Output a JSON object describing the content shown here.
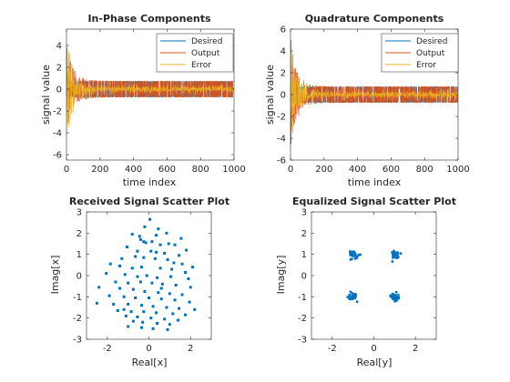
{
  "colors": {
    "desired": "#0072BD",
    "output": "#D95319",
    "error": "#EDB120",
    "scatter": "#0072BD",
    "axis": "#262626"
  },
  "chart_data": [
    {
      "type": "line",
      "title": "In-Phase Components",
      "xlabel": "time index",
      "ylabel": "signal value",
      "xlim": [
        0,
        1000
      ],
      "ylim": [
        -6.5,
        5.5
      ],
      "xticks": [
        0,
        200,
        400,
        600,
        800,
        1000
      ],
      "yticks": [
        -6,
        -4,
        -2,
        0,
        2,
        4
      ],
      "legend": "top-right",
      "grid": false,
      "series": [
        {
          "name": "Desired",
          "values_desc": "±0.71 QPSK symbols",
          "amplitude": 0.71
        },
        {
          "name": "Output",
          "transient_peak": 4.8,
          "steady_amplitude": 0.75,
          "settle_index": 80
        },
        {
          "name": "Error",
          "transient_peak": 5.5,
          "steady_amplitude": 0.35,
          "settle_index": 80
        }
      ]
    },
    {
      "type": "line",
      "title": "Quadrature Components",
      "xlabel": "time index",
      "ylabel": "signal value",
      "xlim": [
        0,
        1000
      ],
      "ylim": [
        -6,
        6
      ],
      "xticks": [
        0,
        200,
        400,
        600,
        800,
        1000
      ],
      "yticks": [
        -6,
        -4,
        -2,
        0,
        2,
        4,
        6
      ],
      "legend": "top-right",
      "grid": false,
      "series": [
        {
          "name": "Desired",
          "amplitude": 0.71
        },
        {
          "name": "Output",
          "transient_peak": 5.5,
          "steady_amplitude": 0.75,
          "settle_index": 80
        },
        {
          "name": "Error",
          "transient_peak": 5.0,
          "steady_amplitude": 0.35,
          "settle_index": 80
        }
      ]
    },
    {
      "type": "scatter",
      "title": "Received Signal Scatter Plot",
      "xlabel": "Real[x]",
      "ylabel": "Imag[x]",
      "xlim": [
        -3,
        3
      ],
      "ylim": [
        -3,
        3
      ],
      "xticks": [
        -2,
        0,
        2
      ],
      "yticks": [
        -3,
        -2,
        -1,
        0,
        1,
        2,
        3
      ],
      "x": [
        0.05,
        -0.2,
        0.45,
        -0.8,
        -0.45,
        0.35,
        0.85,
        1.55,
        -0.25,
        0.15,
        -0.15,
        0.55,
        0.95,
        1.25,
        1.8,
        -1.05,
        -0.55,
        0.1,
        0.75,
        1.45,
        -0.65,
        -0.25,
        0.3,
        0.9,
        1.6,
        2.1,
        -1.85,
        -1.4,
        -0.8,
        -0.35,
        0.55,
        1.1,
        1.75,
        -2.05,
        -1.15,
        -0.55,
        -0.1,
        0.4,
        1.05,
        1.9,
        -1.6,
        -1.0,
        -0.4,
        0.15,
        0.65,
        1.3,
        2.0,
        -2.4,
        -1.4,
        -0.75,
        -0.2,
        0.45,
        1.0,
        1.6,
        -1.9,
        -1.2,
        -0.65,
        0.0,
        0.6,
        1.25,
        1.95,
        -2.5,
        -1.7,
        -1.0,
        -0.35,
        0.2,
        0.85,
        1.45,
        2.2,
        -1.5,
        -0.85,
        -0.25,
        0.35,
        1.15,
        1.75,
        -1.1,
        -0.55,
        0.1,
        0.75,
        1.4,
        -0.75,
        -0.3,
        0.4,
        1.0,
        -1.0,
        -0.35,
        0.2,
        0.9,
        -0.4,
        0.35,
        0.6,
        -1.3,
        -1.2,
        1.2
      ],
      "y": [
        2.65,
        2.3,
        2.2,
        1.95,
        1.85,
        1.9,
        2.0,
        1.75,
        1.6,
        1.6,
        1.55,
        1.45,
        1.5,
        1.45,
        1.2,
        1.35,
        1.15,
        1.15,
        1.05,
        0.95,
        0.9,
        0.85,
        0.8,
        0.75,
        0.55,
        0.4,
        0.55,
        0.45,
        0.35,
        0.4,
        0.35,
        0.3,
        0.15,
        0.1,
        0.05,
        -0.05,
        0.0,
        -0.1,
        -0.05,
        -0.15,
        -0.3,
        -0.35,
        -0.3,
        -0.35,
        -0.4,
        -0.45,
        -0.55,
        -0.55,
        -0.6,
        -0.65,
        -0.75,
        -0.8,
        -0.85,
        -0.9,
        -0.95,
        -1.0,
        -1.05,
        -1.05,
        -1.1,
        -1.15,
        -1.25,
        -1.3,
        -1.35,
        -1.35,
        -1.4,
        -1.45,
        -1.5,
        -1.55,
        -1.6,
        -1.65,
        -1.7,
        -1.7,
        -1.75,
        -1.8,
        -1.85,
        -1.9,
        -1.95,
        -2.0,
        -2.05,
        -2.1,
        -2.15,
        -2.2,
        -2.25,
        -2.3,
        -2.4,
        -2.45,
        -2.5,
        -2.55,
        1.7,
        1.1,
        -0.6,
        0.8,
        -1.6,
        0.6
      ]
    },
    {
      "type": "scatter",
      "title": "Equalized Signal Scatter Plot",
      "xlabel": "Real[y]",
      "ylabel": "Imag[y]",
      "xlim": [
        -3,
        3
      ],
      "ylim": [
        -3,
        3
      ],
      "xticks": [
        -2,
        0,
        2
      ],
      "yticks": [
        -3,
        -2,
        -1,
        0,
        1,
        2,
        3
      ],
      "cluster_centers": [
        [
          -1.0,
          1.0
        ],
        [
          1.0,
          1.0
        ],
        [
          -1.0,
          -1.0
        ],
        [
          1.0,
          -1.0
        ]
      ],
      "cluster_spread": 0.12
    }
  ]
}
